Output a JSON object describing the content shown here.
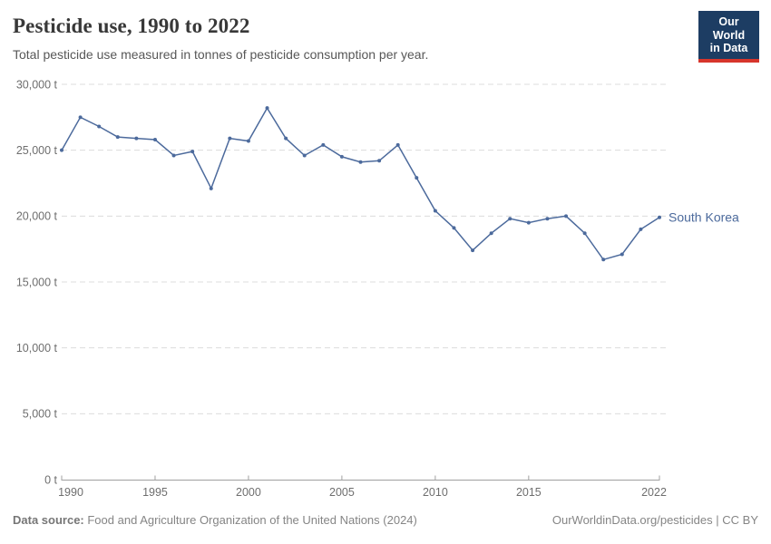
{
  "header": {
    "title": "Pesticide use, 1990 to 2022",
    "subtitle": "Total pesticide use measured in tonnes of pesticide consumption per year.",
    "logo": {
      "line1": "Our World",
      "line2": "in Data"
    }
  },
  "chart_data": {
    "type": "line",
    "title": "Pesticide use, 1990 to 2022",
    "subtitle": "Total pesticide use measured in tonnes of pesticide consumption per year.",
    "unit": "t",
    "x": [
      1990,
      1991,
      1992,
      1993,
      1994,
      1995,
      1996,
      1997,
      1998,
      1999,
      2000,
      2001,
      2002,
      2003,
      2004,
      2005,
      2006,
      2007,
      2008,
      2009,
      2010,
      2011,
      2012,
      2013,
      2014,
      2015,
      2016,
      2017,
      2018,
      2019,
      2020,
      2021,
      2022
    ],
    "series": [
      {
        "name": "South Korea",
        "values": [
          25000,
          27500,
          26800,
          26000,
          25900,
          25800,
          24600,
          24900,
          22100,
          25900,
          25700,
          28200,
          25900,
          24600,
          25400,
          24500,
          24100,
          24200,
          25400,
          22900,
          20400,
          19100,
          17400,
          18700,
          19800,
          19500,
          19800,
          20000,
          18700,
          16700,
          17100,
          19000,
          19900
        ]
      }
    ],
    "xlabel": "",
    "ylabel": "",
    "xlim": [
      1990,
      2022
    ],
    "ylim": [
      0,
      30000
    ],
    "yticks": [
      {
        "value": 0,
        "label": "0 t"
      },
      {
        "value": 5000,
        "label": "5,000 t"
      },
      {
        "value": 10000,
        "label": "10,000 t"
      },
      {
        "value": 15000,
        "label": "15,000 t"
      },
      {
        "value": 20000,
        "label": "20,000 t"
      },
      {
        "value": 25000,
        "label": "25,000 t"
      },
      {
        "value": 30000,
        "label": "30,000 t"
      }
    ],
    "xticks": [
      {
        "value": 1990,
        "label": "1990"
      },
      {
        "value": 1995,
        "label": "1995"
      },
      {
        "value": 2000,
        "label": "2000"
      },
      {
        "value": 2005,
        "label": "2005"
      },
      {
        "value": 2010,
        "label": "2010"
      },
      {
        "value": 2015,
        "label": "2015"
      },
      {
        "value": 2022,
        "label": "2022"
      }
    ],
    "grid": "horizontal-dashed",
    "legend_position": "end-of-line-label",
    "entity_label": "South Korea"
  },
  "footer": {
    "source_label": "Data source:",
    "source_text": " Food and Agriculture Organization of the United Nations (2024)",
    "link": "OurWorldinData.org/pesticides",
    "license_suffix": " | CC BY"
  },
  "colors": {
    "line": "#4C6A9C",
    "entity_label": "#4C6A9C",
    "grid": "#dcdcdc",
    "axis": "#a0a0a0",
    "tick_text": "#6e6e6e",
    "title": "#383838",
    "subtitle": "#575757",
    "footer": "#858585",
    "logo_bg": "#1d3d63",
    "logo_red": "#d7352c"
  }
}
